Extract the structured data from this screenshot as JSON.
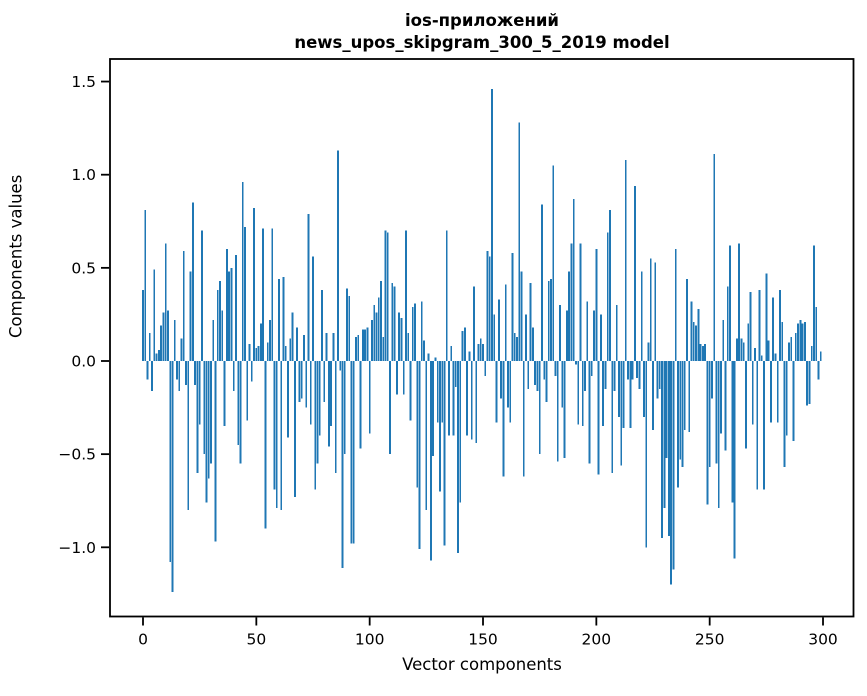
{
  "figure": {
    "title_line1": "ios-приложений",
    "title_line2": "news_upos_skipgram_300_5_2019 model",
    "xlabel": "Vector components",
    "ylabel": "Components values",
    "bar_color": "#1f77b4",
    "spine_color": "#000000",
    "background": "#ffffff"
  },
  "chart_data": {
    "type": "bar",
    "title": "ios-приложений\nnews_upos_skipgram_300_5_2019 model",
    "xlabel": "Vector components",
    "ylabel": "Components values",
    "x_ticks": [
      0,
      50,
      100,
      150,
      200,
      250,
      300
    ],
    "y_ticks": [
      1.5,
      1.0,
      0.5,
      0.0,
      -0.5,
      -1.0
    ],
    "xlim": [
      -15.4,
      314.4
    ],
    "ylim": [
      -1.37,
      1.62
    ],
    "grid": false,
    "legend": null,
    "bar_color": "#1f77b4",
    "n_bars": 300,
    "values": [
      0.38,
      0.81,
      -0.1,
      0.15,
      -0.16,
      0.49,
      0.04,
      0.06,
      0.19,
      0.26,
      0.63,
      0.27,
      -1.08,
      -1.24,
      0.22,
      -0.1,
      -0.16,
      0.12,
      0.59,
      -0.13,
      -0.8,
      0.48,
      0.85,
      -0.13,
      -0.6,
      -0.34,
      0.7,
      -0.5,
      -0.76,
      -0.63,
      -0.55,
      0.22,
      -0.97,
      0.38,
      0.43,
      0.27,
      -0.35,
      0.6,
      0.48,
      0.5,
      -0.16,
      0.57,
      -0.45,
      -0.55,
      0.96,
      0.72,
      -0.32,
      0.09,
      -0.11,
      0.82,
      0.07,
      0.08,
      0.2,
      0.71,
      -0.9,
      0.1,
      0.22,
      0.71,
      -0.69,
      -0.79,
      0.44,
      -0.8,
      0.45,
      0.08,
      -0.41,
      0.12,
      0.26,
      -0.73,
      0.18,
      -0.22,
      -0.2,
      0.14,
      -0.25,
      0.79,
      -0.34,
      0.56,
      -0.69,
      -0.55,
      -0.4,
      0.38,
      -0.22,
      0.15,
      -0.46,
      -0.35,
      0.15,
      -0.6,
      1.13,
      -0.05,
      -1.11,
      -0.5,
      0.39,
      0.35,
      -0.98,
      -0.98,
      0.13,
      0.14,
      -0.47,
      0.17,
      0.17,
      0.18,
      -0.39,
      0.22,
      0.3,
      0.26,
      0.34,
      0.43,
      0.13,
      0.7,
      0.69,
      -0.5,
      0.42,
      0.4,
      -0.18,
      0.26,
      0.23,
      -0.18,
      0.7,
      0.15,
      -0.32,
      0.29,
      0.31,
      -0.68,
      -1.01,
      0.32,
      0.11,
      -0.8,
      0.04,
      -1.07,
      -0.51,
      0.02,
      -0.33,
      -0.7,
      -0.33,
      -0.99,
      0.7,
      -0.4,
      0.08,
      -0.4,
      -0.14,
      -1.03,
      -0.76,
      0.16,
      0.18,
      -0.4,
      0.05,
      -0.42,
      0.4,
      -0.44,
      0.09,
      0.12,
      0.09,
      -0.08,
      0.59,
      0.56,
      1.46,
      0.25,
      -0.33,
      0.33,
      -0.2,
      -0.62,
      0.41,
      -0.25,
      -0.33,
      0.58,
      0.15,
      0.13,
      1.28,
      0.48,
      -0.62,
      0.25,
      -0.15,
      0.42,
      0.18,
      -0.13,
      -0.16,
      -0.5,
      0.84,
      -0.1,
      -0.22,
      0.43,
      0.44,
      1.05,
      -0.08,
      -0.54,
      0.3,
      -0.25,
      -0.52,
      0.27,
      0.48,
      0.63,
      0.87,
      -0.02,
      -0.34,
      0.63,
      -0.35,
      -0.16,
      0.32,
      -0.55,
      -0.08,
      0.27,
      0.6,
      -0.61,
      0.25,
      -0.35,
      -0.15,
      0.69,
      0.81,
      -0.6,
      -0.16,
      0.3,
      -0.3,
      -0.56,
      -0.36,
      1.08,
      -0.1,
      -0.36,
      -0.1,
      0.94,
      -0.09,
      -0.15,
      0.48,
      -0.3,
      -1.0,
      0.1,
      0.55,
      -0.37,
      0.53,
      -0.2,
      -0.15,
      -0.95,
      -0.79,
      -0.52,
      -0.94,
      -1.2,
      -1.12,
      0.6,
      -0.68,
      -0.53,
      -0.57,
      -0.37,
      0.44,
      -0.38,
      0.32,
      0.21,
      0.19,
      0.28,
      0.09,
      0.08,
      0.09,
      -0.77,
      -0.57,
      -0.2,
      1.11,
      -0.55,
      -0.79,
      -0.39,
      0.22,
      -0.48,
      0.4,
      0.62,
      -0.76,
      -1.06,
      0.12,
      0.63,
      0.12,
      0.1,
      -0.47,
      0.2,
      0.37,
      -0.34,
      0.07,
      -0.69,
      0.38,
      0.03,
      -0.69,
      0.47,
      0.11,
      -0.33,
      0.34,
      0.04,
      -0.33,
      0.38,
      0.21,
      -0.57,
      -0.4,
      0.1,
      0.13,
      -0.43,
      0.15,
      0.2,
      0.22,
      0.2,
      0.21,
      -0.24,
      -0.23,
      0.08,
      0.62,
      0.29,
      -0.1,
      0.05
    ]
  }
}
